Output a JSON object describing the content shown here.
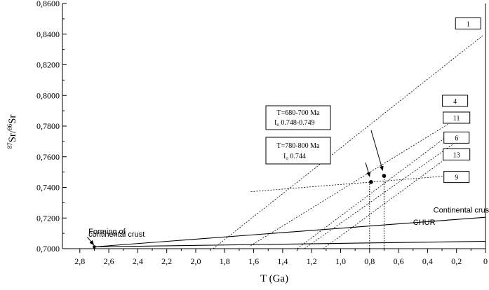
{
  "chart_data": {
    "type": "line",
    "xlabel": "T (Ga)",
    "ylabel": "87Sr/86Sr",
    "ylabel_parts": {
      "sup1": "87",
      "base1": "Sr/",
      "sup2": "86",
      "base2": "Sr"
    },
    "xlim": [
      2.92,
      0
    ],
    "ylim": [
      0.7,
      0.86
    ],
    "x_ticks": [
      2.8,
      2.6,
      2.4,
      2.2,
      2.0,
      1.8,
      1.6,
      1.4,
      1.2,
      1.0,
      0.8,
      0.6,
      0.4,
      0.2,
      0
    ],
    "x_tick_labels": [
      "2,8",
      "2,6",
      "2,4",
      "2,2",
      "2,0",
      "1,8",
      "1,6",
      "1,4",
      "1,2",
      "1,0",
      "0,8",
      "0,6",
      "0,4",
      "0,2",
      "0"
    ],
    "y_ticks": [
      0.7,
      0.72,
      0.74,
      0.76,
      0.78,
      0.8,
      0.82,
      0.84,
      0.86
    ],
    "y_tick_labels": [
      "0,7000",
      "0,7200",
      "0,7400",
      "0,7600",
      "0,7800",
      "0,8000",
      "0,8200",
      "0,8400",
      "0,8600"
    ],
    "evolution_lines": [
      {
        "name": "Continental crust",
        "points": [
          [
            2.7,
            0.7012
          ],
          [
            0,
            0.7205
          ]
        ]
      },
      {
        "name": "CHUR",
        "points": [
          [
            2.7,
            0.7012
          ],
          [
            0,
            0.7048
          ]
        ]
      }
    ],
    "sample_lines": [
      {
        "label": "1",
        "points": [
          [
            1.88,
            0.7
          ],
          [
            0.02,
            0.839
          ]
        ]
      },
      {
        "label": "4",
        "points": [
          [
            1.62,
            0.702
          ],
          [
            0.22,
            0.7835
          ]
        ]
      },
      {
        "label": "11",
        "points": [
          [
            1.3,
            0.7
          ],
          [
            0.22,
            0.7765
          ]
        ]
      },
      {
        "label": "6",
        "points": [
          [
            1.25,
            0.7
          ],
          [
            0.22,
            0.7685
          ]
        ]
      },
      {
        "label": "13",
        "points": [
          [
            1.12,
            0.7
          ],
          [
            0.22,
            0.7625
          ]
        ]
      },
      {
        "label": "9",
        "points": [
          [
            1.62,
            0.7372
          ],
          [
            0.22,
            0.7478
          ]
        ]
      }
    ],
    "labels": [
      {
        "text": "1",
        "x": 0.12,
        "y": 0.847
      },
      {
        "text": "4",
        "x": 0.21,
        "y": 0.7965
      },
      {
        "text": "11",
        "x": 0.2,
        "y": 0.7855
      },
      {
        "text": "6",
        "x": 0.2,
        "y": 0.7725
      },
      {
        "text": "13",
        "x": 0.2,
        "y": 0.7615
      },
      {
        "text": "9",
        "x": 0.2,
        "y": 0.7468
      }
    ],
    "intersection_points": [
      {
        "x": 0.79,
        "y": 0.7435
      },
      {
        "x": 0.7,
        "y": 0.7475
      }
    ],
    "dotted_verticals": [
      {
        "x": 0.8,
        "y_from": 0.7,
        "y_to": 0.7435
      },
      {
        "x": 0.7,
        "y_from": 0.7,
        "y_to": 0.7475
      }
    ],
    "annotations": [
      {
        "text": "Forming of",
        "x": 2.74,
        "y": 0.7095
      },
      {
        "text": "continental crust",
        "x": 2.74,
        "y": 0.7077
      },
      {
        "text": "Continental crust",
        "x": 0.36,
        "y": 0.7235
      },
      {
        "text": "CHUR",
        "x": 0.5,
        "y": 0.7155
      }
    ],
    "info_boxes": [
      {
        "line1": "T=680-700 Ma",
        "line2_pre": "I",
        "line2_sub": "o",
        "line2": " 0.748-0.749"
      },
      {
        "line1": "T=780-800 Ma",
        "line2_pre": "I",
        "line2_sub": "o",
        "line2": " 0.744"
      }
    ],
    "forming_point": {
      "x": 2.7,
      "y": 0.7012
    }
  }
}
